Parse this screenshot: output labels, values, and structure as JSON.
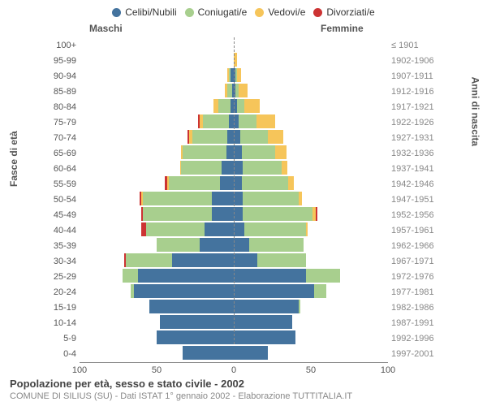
{
  "legend": [
    {
      "label": "Celibi/Nubili",
      "color": "#44739e"
    },
    {
      "label": "Coniugati/e",
      "color": "#a8cf8e"
    },
    {
      "label": "Vedovi/e",
      "color": "#f6c55a"
    },
    {
      "label": "Divorziati/e",
      "color": "#cc3333"
    }
  ],
  "headers": {
    "male": "Maschi",
    "female": "Femmine"
  },
  "y_left_title": "Fasce di età",
  "y_right_title": "Anni di nascita",
  "footer_title": "Popolazione per età, sesso e stato civile - 2002",
  "footer_sub": "COMUNE DI SILIUS (SU) - Dati ISTAT 1° gennaio 2002 - Elaborazione TUTTITALIA.IT",
  "x_max": 100,
  "x_ticks": [
    100,
    50,
    0,
    50,
    100
  ],
  "rows": [
    {
      "age": "100+",
      "year": "≤ 1901",
      "m": {
        "cel": 0,
        "con": 0,
        "ved": 0,
        "div": 0
      },
      "f": {
        "cel": 0,
        "con": 0,
        "ved": 0,
        "div": 0
      }
    },
    {
      "age": "95-99",
      "year": "1902-1906",
      "m": {
        "cel": 0,
        "con": 0,
        "ved": 0,
        "div": 0
      },
      "f": {
        "cel": 0,
        "con": 0,
        "ved": 2,
        "div": 0
      }
    },
    {
      "age": "90-94",
      "year": "1907-1911",
      "m": {
        "cel": 2,
        "con": 1,
        "ved": 1,
        "div": 0
      },
      "f": {
        "cel": 1,
        "con": 1,
        "ved": 3,
        "div": 0
      }
    },
    {
      "age": "85-89",
      "year": "1912-1916",
      "m": {
        "cel": 1,
        "con": 3,
        "ved": 2,
        "div": 0
      },
      "f": {
        "cel": 1,
        "con": 2,
        "ved": 6,
        "div": 0
      }
    },
    {
      "age": "80-84",
      "year": "1917-1921",
      "m": {
        "cel": 2,
        "con": 8,
        "ved": 3,
        "div": 0
      },
      "f": {
        "cel": 2,
        "con": 5,
        "ved": 10,
        "div": 0
      }
    },
    {
      "age": "75-79",
      "year": "1922-1926",
      "m": {
        "cel": 3,
        "con": 17,
        "ved": 2,
        "div": 1
      },
      "f": {
        "cel": 3,
        "con": 12,
        "ved": 12,
        "div": 0
      }
    },
    {
      "age": "70-74",
      "year": "1927-1931",
      "m": {
        "cel": 4,
        "con": 23,
        "ved": 2,
        "div": 1
      },
      "f": {
        "cel": 4,
        "con": 18,
        "ved": 10,
        "div": 0
      }
    },
    {
      "age": "65-69",
      "year": "1932-1936",
      "m": {
        "cel": 5,
        "con": 28,
        "ved": 1,
        "div": 0
      },
      "f": {
        "cel": 5,
        "con": 22,
        "ved": 7,
        "div": 0
      }
    },
    {
      "age": "60-64",
      "year": "1937-1941",
      "m": {
        "cel": 8,
        "con": 26,
        "ved": 1,
        "div": 0
      },
      "f": {
        "cel": 6,
        "con": 25,
        "ved": 4,
        "div": 0
      }
    },
    {
      "age": "55-59",
      "year": "1942-1946",
      "m": {
        "cel": 9,
        "con": 33,
        "ved": 1,
        "div": 2
      },
      "f": {
        "cel": 5,
        "con": 30,
        "ved": 4,
        "div": 0
      }
    },
    {
      "age": "50-54",
      "year": "1947-1951",
      "m": {
        "cel": 14,
        "con": 45,
        "ved": 1,
        "div": 1
      },
      "f": {
        "cel": 6,
        "con": 36,
        "ved": 2,
        "div": 0
      }
    },
    {
      "age": "45-49",
      "year": "1952-1956",
      "m": {
        "cel": 14,
        "con": 45,
        "ved": 0,
        "div": 1
      },
      "f": {
        "cel": 6,
        "con": 45,
        "ved": 2,
        "div": 1
      }
    },
    {
      "age": "40-44",
      "year": "1957-1961",
      "m": {
        "cel": 19,
        "con": 38,
        "ved": 0,
        "div": 3
      },
      "f": {
        "cel": 7,
        "con": 40,
        "ved": 1,
        "div": 0
      }
    },
    {
      "age": "35-39",
      "year": "1962-1966",
      "m": {
        "cel": 22,
        "con": 28,
        "ved": 0,
        "div": 0
      },
      "f": {
        "cel": 10,
        "con": 35,
        "ved": 0,
        "div": 0
      }
    },
    {
      "age": "30-34",
      "year": "1967-1971",
      "m": {
        "cel": 40,
        "con": 30,
        "ved": 0,
        "div": 1
      },
      "f": {
        "cel": 15,
        "con": 32,
        "ved": 0,
        "div": 0
      }
    },
    {
      "age": "25-29",
      "year": "1972-1976",
      "m": {
        "cel": 62,
        "con": 10,
        "ved": 0,
        "div": 0
      },
      "f": {
        "cel": 47,
        "con": 22,
        "ved": 0,
        "div": 0
      }
    },
    {
      "age": "20-24",
      "year": "1977-1981",
      "m": {
        "cel": 65,
        "con": 2,
        "ved": 0,
        "div": 0
      },
      "f": {
        "cel": 52,
        "con": 8,
        "ved": 0,
        "div": 0
      }
    },
    {
      "age": "15-19",
      "year": "1982-1986",
      "m": {
        "cel": 55,
        "con": 0,
        "ved": 0,
        "div": 0
      },
      "f": {
        "cel": 42,
        "con": 1,
        "ved": 0,
        "div": 0
      }
    },
    {
      "age": "10-14",
      "year": "1987-1991",
      "m": {
        "cel": 48,
        "con": 0,
        "ved": 0,
        "div": 0
      },
      "f": {
        "cel": 38,
        "con": 0,
        "ved": 0,
        "div": 0
      }
    },
    {
      "age": "5-9",
      "year": "1992-1996",
      "m": {
        "cel": 50,
        "con": 0,
        "ved": 0,
        "div": 0
      },
      "f": {
        "cel": 40,
        "con": 0,
        "ved": 0,
        "div": 0
      }
    },
    {
      "age": "0-4",
      "year": "1997-2001",
      "m": {
        "cel": 33,
        "con": 0,
        "ved": 0,
        "div": 0
      },
      "f": {
        "cel": 22,
        "con": 0,
        "ved": 0,
        "div": 0
      }
    }
  ],
  "colors": {
    "cel": "#44739e",
    "con": "#a8cf8e",
    "ved": "#f6c55a",
    "div": "#cc3333"
  }
}
